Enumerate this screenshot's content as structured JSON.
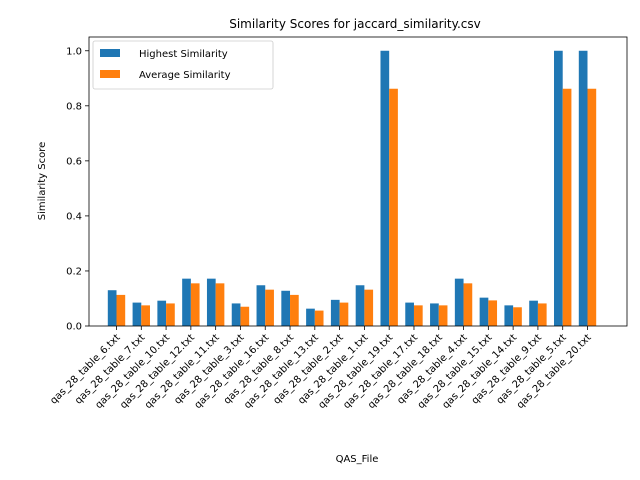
{
  "chart_data": {
    "type": "bar",
    "title": "Similarity Scores for jaccard_similarity.csv",
    "xlabel": "QAS_File",
    "ylabel": "Similarity Score",
    "ylim": [
      0,
      1.05
    ],
    "yticks": [
      "0.0",
      "0.2",
      "0.4",
      "0.6",
      "0.8",
      "1.0"
    ],
    "ytick_values": [
      0,
      0.2,
      0.4,
      0.6,
      0.8,
      1.0
    ],
    "grid": false,
    "legend_position": "top-left",
    "categories": [
      "qas_28_table_6.txt",
      "qas_28_table_7.txt",
      "qas_28_table_10.txt",
      "qas_28_table_12.txt",
      "qas_28_table_11.txt",
      "qas_28_table_3.txt",
      "qas_28_table_16.txt",
      "qas_28_table_8.txt",
      "qas_28_table_13.txt",
      "qas_28_table_2.txt",
      "qas_28_table_1.txt",
      "qas_28_table_19.txt",
      "qas_28_table_17.txt",
      "qas_28_table_18.txt",
      "qas_28_table_4.txt",
      "qas_28_table_15.txt",
      "qas_28_table_14.txt",
      "qas_28_table_9.txt",
      "qas_28_table_5.txt",
      "qas_28_table_20.txt"
    ],
    "series": [
      {
        "name": "Highest Similarity",
        "color": "#1f77b4",
        "values": [
          0.13,
          0.085,
          0.092,
          0.172,
          0.172,
          0.082,
          0.148,
          0.128,
          0.063,
          0.095,
          0.148,
          1.0,
          0.085,
          0.082,
          0.172,
          0.103,
          0.075,
          0.092,
          1.0,
          1.0
        ]
      },
      {
        "name": "Average Similarity",
        "color": "#ff7f0e",
        "values": [
          0.113,
          0.075,
          0.082,
          0.155,
          0.155,
          0.07,
          0.132,
          0.113,
          0.056,
          0.085,
          0.132,
          0.862,
          0.075,
          0.075,
          0.155,
          0.093,
          0.068,
          0.082,
          0.862,
          0.862
        ]
      }
    ]
  }
}
